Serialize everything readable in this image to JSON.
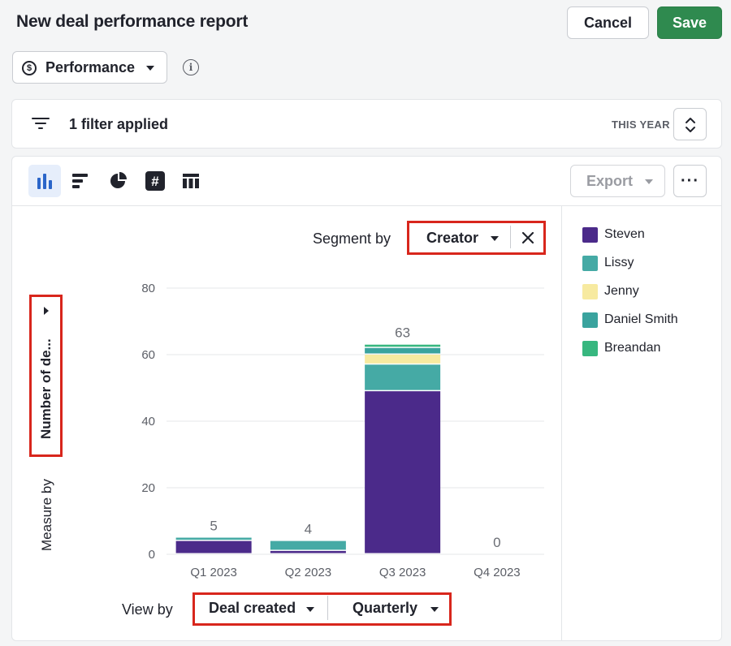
{
  "header": {
    "title": "New deal performance report",
    "cancel_label": "Cancel",
    "save_label": "Save"
  },
  "report_type": {
    "icon": "dollar-circle-icon",
    "selected": "Performance"
  },
  "filters": {
    "summary": "1 filter applied",
    "period": "THIS YEAR"
  },
  "toolbar": {
    "chart_types": [
      "vertical-bar-chart",
      "horizontal-bar-chart",
      "pie-chart",
      "scorecard",
      "table"
    ],
    "active_chart_type": "vertical-bar-chart",
    "export_label": "Export",
    "more_label": "···"
  },
  "segment": {
    "label": "Segment by",
    "value": "Creator"
  },
  "measure": {
    "label": "Measure by",
    "value": "Number of de..."
  },
  "view_by": {
    "label": "View by",
    "primary": "Deal created",
    "secondary": "Quarterly"
  },
  "legend": [
    {
      "label": "Steven",
      "color": "#4b2a8a"
    },
    {
      "label": "Lissy",
      "color": "#45aaa5"
    },
    {
      "label": "Jenny",
      "color": "#f7eaa0"
    },
    {
      "label": "Daniel Smith",
      "color": "#3aa39e"
    },
    {
      "label": "Breandan",
      "color": "#37b77f"
    }
  ],
  "chart_data": {
    "type": "bar",
    "stacked": true,
    "categories": [
      "Q1 2023",
      "Q2 2023",
      "Q3 2023",
      "Q4 2023"
    ],
    "totals": [
      5,
      4,
      63,
      0
    ],
    "series": [
      {
        "name": "Steven",
        "values": [
          4,
          1,
          49,
          0
        ]
      },
      {
        "name": "Lissy",
        "values": [
          1,
          3,
          8,
          0
        ]
      },
      {
        "name": "Jenny",
        "values": [
          0,
          0,
          3,
          0
        ]
      },
      {
        "name": "Daniel Smith",
        "values": [
          0,
          0,
          2,
          0
        ]
      },
      {
        "name": "Breandan",
        "values": [
          0,
          0,
          1,
          0
        ]
      }
    ],
    "yticks": [
      0,
      20,
      40,
      60,
      80
    ],
    "ylim": [
      0,
      80
    ],
    "grid": true,
    "legend_position": "right"
  }
}
